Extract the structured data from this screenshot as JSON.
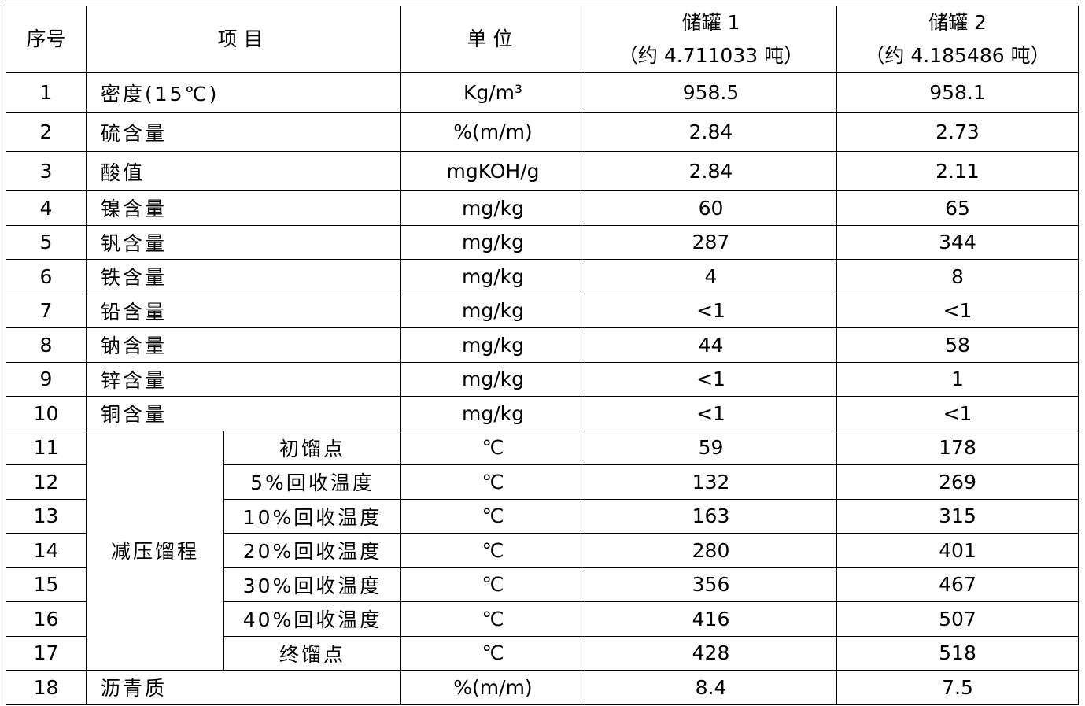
{
  "headers": {
    "no": "序号",
    "item": "项目",
    "unit": "单位",
    "tank1": "储罐 1",
    "tank1_sub": "（约 4.711033 吨）",
    "tank2": "储罐 2",
    "tank2_sub": "（约 4.185486 吨）"
  },
  "group_label": "减压馏程",
  "rows": [
    {
      "no": "1",
      "item": "密度(15℃)",
      "unit": "Kg/m³",
      "t1": "958.5",
      "t2": "958.1"
    },
    {
      "no": "2",
      "item": "硫含量",
      "unit": "%(m/m)",
      "t1": "2.84",
      "t2": "2.73"
    },
    {
      "no": "3",
      "item": "酸值",
      "unit": "mgKOH/g",
      "t1": "2.84",
      "t2": "2.11"
    },
    {
      "no": "4",
      "item": "镍含量",
      "unit": "mg/kg",
      "t1": "60",
      "t2": "65"
    },
    {
      "no": "5",
      "item": "钒含量",
      "unit": "mg/kg",
      "t1": "287",
      "t2": "344"
    },
    {
      "no": "6",
      "item": "铁含量",
      "unit": "mg/kg",
      "t1": "4",
      "t2": "8"
    },
    {
      "no": "7",
      "item": "铅含量",
      "unit": "mg/kg",
      "t1": "<1",
      "t2": "<1"
    },
    {
      "no": "8",
      "item": "钠含量",
      "unit": "mg/kg",
      "t1": "44",
      "t2": "58"
    },
    {
      "no": "9",
      "item": "锌含量",
      "unit": "mg/kg",
      "t1": "<1",
      "t2": "1"
    },
    {
      "no": "10",
      "item": "铜含量",
      "unit": "mg/kg",
      "t1": "<1",
      "t2": "<1"
    },
    {
      "no": "11",
      "item": "初馏点",
      "unit": "℃",
      "t1": "59",
      "t2": "178"
    },
    {
      "no": "12",
      "item": "5%回收温度",
      "unit": "℃",
      "t1": "132",
      "t2": "269"
    },
    {
      "no": "13",
      "item": "10%回收温度",
      "unit": "℃",
      "t1": "163",
      "t2": "315"
    },
    {
      "no": "14",
      "item": "20%回收温度",
      "unit": "℃",
      "t1": "280",
      "t2": "401"
    },
    {
      "no": "15",
      "item": "30%回收温度",
      "unit": "℃",
      "t1": "356",
      "t2": "467"
    },
    {
      "no": "16",
      "item": "40%回收温度",
      "unit": "℃",
      "t1": "416",
      "t2": "507"
    },
    {
      "no": "17",
      "item": "终馏点",
      "unit": "℃",
      "t1": "428",
      "t2": "518"
    },
    {
      "no": "18",
      "item": "沥青质",
      "unit": "%(m/m)",
      "t1": "8.4",
      "t2": "7.5"
    }
  ]
}
